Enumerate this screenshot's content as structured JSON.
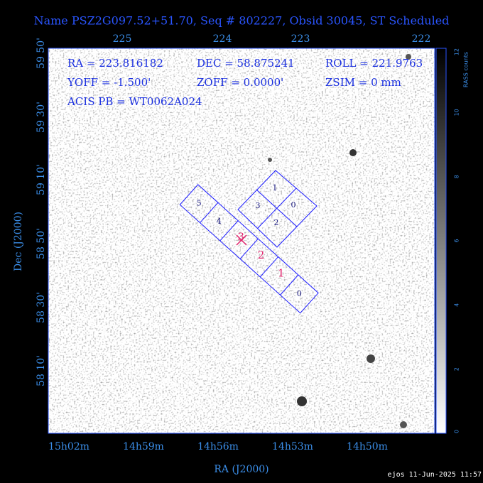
{
  "title": "Name PSZ2G097.52+51.70, Seq # 802227, Obsid 30045, ST Scheduled",
  "top_ticks": [
    "225",
    "224",
    "223",
    "222"
  ],
  "left_ticks": [
    "59 50'",
    "59 30'",
    "59 10'",
    "58 50'",
    "58 30'",
    "58 10'"
  ],
  "bottom_ticks": [
    "15h02m",
    "14h59m",
    "14h56m",
    "14h53m",
    "14h50m"
  ],
  "x_label": "RA (J2000)",
  "y_label": "Dec (J2000)",
  "info": [
    "RA = 223.816182",
    "DEC = 58.875241",
    "ROLL = 221.9763",
    "YOFF =  -1.500'",
    "ZOFF =  0.0000'",
    "ZSIM = 0 mm",
    "ACIS PB = WT0062A024"
  ],
  "colorbar": {
    "label": "RASS counts",
    "ticks": [
      "0",
      "2",
      "4",
      "6",
      "8",
      "10",
      "12"
    ]
  },
  "s_array": [
    "5",
    "4",
    "3",
    "2",
    "1",
    "0"
  ],
  "i_array": [
    "1",
    "0",
    "2",
    "3"
  ],
  "footer": "ejos 11-Jun-2025 11:57"
}
